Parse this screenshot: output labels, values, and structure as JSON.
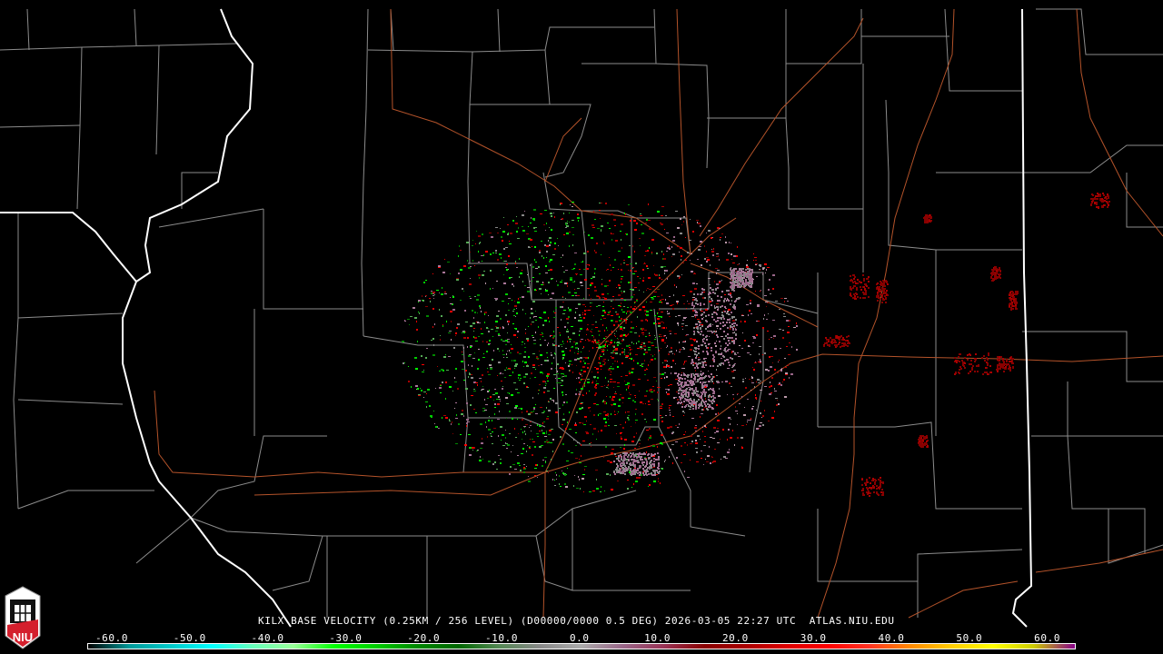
{
  "product": {
    "station": "KILX",
    "caption": "KILX BASE VELOCITY (0.25KM / 256 LEVEL) (D00000/0000 0.5 DEG) 2026-03-05 22:27 UTC  ATLAS.NIU.EDU",
    "product_name": "BASE VELOCITY",
    "elevation": "0.5 DEG",
    "date": "2026-03-05",
    "time": "22:27 UTC",
    "source": "ATLAS.NIU.EDU"
  },
  "logo": {
    "text": "NIU",
    "accent": "#d41f2d"
  },
  "colorbar": {
    "tick_labels": [
      "-60.0",
      "-50.0",
      "-40.0",
      "-30.0",
      "-20.0",
      "-10.0",
      "0.0",
      "10.0",
      "20.0",
      "30.0",
      "40.0",
      "50.0",
      "60.0"
    ],
    "range": [
      -64,
      64
    ],
    "colors": [
      "#000000",
      "#009999",
      "#00c8c8",
      "#00ffff",
      "#66ffbb",
      "#99ff99",
      "#00ff00",
      "#00cc00",
      "#008800",
      "#006600",
      "#558855",
      "#888888",
      "#aaaaaa",
      "#996688",
      "#993355",
      "#880000",
      "#aa0000",
      "#dd0000",
      "#ff0000",
      "#ff3322",
      "#ff8800",
      "#ffcc00",
      "#ffff00",
      "#cccc00",
      "#880088"
    ]
  },
  "map_colors": {
    "state": "#ffffff",
    "county": "#8c8c8c",
    "highway": "#b4532a",
    "background": "#000000"
  }
}
